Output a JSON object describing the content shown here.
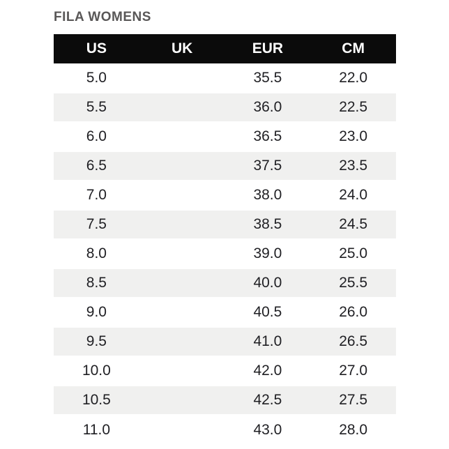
{
  "title": "FILA WOMENS",
  "table": {
    "columns": [
      "US",
      "UK",
      "EUR",
      "CM"
    ],
    "rows": [
      [
        "5.0",
        "",
        "35.5",
        "22.0"
      ],
      [
        "5.5",
        "",
        "36.0",
        "22.5"
      ],
      [
        "6.0",
        "",
        "36.5",
        "23.0"
      ],
      [
        "6.5",
        "",
        "37.5",
        "23.5"
      ],
      [
        "7.0",
        "",
        "38.0",
        "24.0"
      ],
      [
        "7.5",
        "",
        "38.5",
        "24.5"
      ],
      [
        "8.0",
        "",
        "39.0",
        "25.0"
      ],
      [
        "8.5",
        "",
        "40.0",
        "25.5"
      ],
      [
        "9.0",
        "",
        "40.5",
        "26.0"
      ],
      [
        "9.5",
        "",
        "41.0",
        "26.5"
      ],
      [
        "10.0",
        "",
        "42.0",
        "27.0"
      ],
      [
        "10.5",
        "",
        "42.5",
        "27.5"
      ],
      [
        "11.0",
        "",
        "43.0",
        "28.0"
      ]
    ]
  },
  "colors": {
    "header_bg": "#0b0b0b",
    "header_text": "#ffffff",
    "row_stripe": "#f0f0ef",
    "cell_text": "#1f1f23",
    "title_text": "#595757",
    "page_bg": "#ffffff"
  }
}
